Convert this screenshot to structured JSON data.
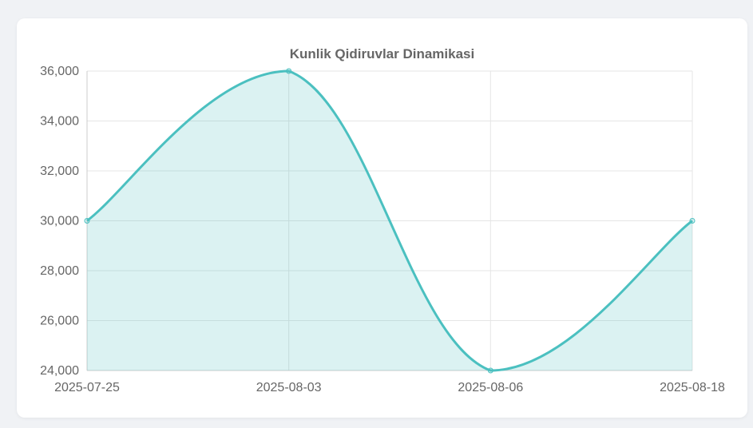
{
  "chart_data": {
    "type": "area",
    "title": "Kunlik Qidiruvlar Dinamikasi",
    "categories": [
      "2025-07-25",
      "2025-08-03",
      "2025-08-06",
      "2025-08-18"
    ],
    "series": [
      {
        "values": [
          30000,
          36000,
          24000,
          30000
        ]
      }
    ],
    "ylim": [
      24000,
      36000
    ],
    "yticks": [
      24000,
      26000,
      28000,
      30000,
      32000,
      34000,
      36000
    ],
    "grid": true,
    "legend": "none",
    "colors": {
      "line": "#4bc0c0",
      "fill": "rgba(75,192,192,0.2)",
      "grid": "#e5e5e5",
      "axis_text": "#666666"
    }
  }
}
